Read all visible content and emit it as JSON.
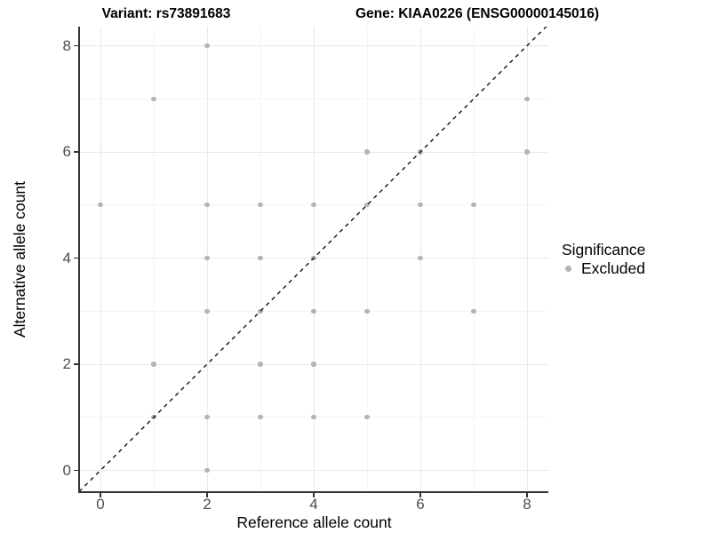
{
  "titles": {
    "variant": "Variant: rs73891683",
    "gene": "Gene: KIAA0226 (ENSG00000145016)"
  },
  "axes": {
    "x": {
      "label": "Reference allele count",
      "tick_labels": [
        "0",
        "2",
        "4",
        "6",
        "8"
      ]
    },
    "y": {
      "label": "Alternative allele count",
      "tick_labels": [
        "0",
        "2",
        "4",
        "6",
        "8"
      ]
    }
  },
  "legend": {
    "title": "Significance",
    "items": [
      {
        "label": "Excluded",
        "color": "#b4b4b4"
      }
    ]
  },
  "colors": {
    "point": "#b4b4b4",
    "grid_major": "#e8e8e8",
    "grid_minor": "#f4f4f4",
    "axis_line": "#343434",
    "tick": "#333333",
    "tick_text": "#4d4d4d",
    "diagonal": "#111111",
    "background": "#ffffff"
  },
  "chart_data": {
    "type": "scatter",
    "title_left": "Variant: rs73891683",
    "title_right": "Gene: KIAA0226 (ENSG00000145016)",
    "xlabel": "Reference allele count",
    "ylabel": "Alternative allele count",
    "xlim": [
      -0.4,
      8.4
    ],
    "ylim": [
      -0.4,
      8.4
    ],
    "x_ticks": [
      0,
      2,
      4,
      6,
      8
    ],
    "y_ticks": [
      0,
      2,
      4,
      6,
      8
    ],
    "x_minor_ticks": [
      1,
      3,
      5,
      7
    ],
    "y_minor_ticks": [
      1,
      3,
      5,
      7
    ],
    "grid": "on",
    "legend_position": "right",
    "series": [
      {
        "name": "Excluded",
        "color": "#b4b4b4",
        "points": [
          [
            0,
            5
          ],
          [
            1,
            1
          ],
          [
            1,
            2
          ],
          [
            1,
            7
          ],
          [
            2,
            0
          ],
          [
            2,
            1
          ],
          [
            2,
            3
          ],
          [
            2,
            4
          ],
          [
            2,
            5
          ],
          [
            2,
            8
          ],
          [
            3,
            1
          ],
          [
            3,
            2
          ],
          [
            3,
            3
          ],
          [
            3,
            4
          ],
          [
            3,
            5
          ],
          [
            4,
            1
          ],
          [
            4,
            2
          ],
          [
            4,
            3
          ],
          [
            4,
            4
          ],
          [
            4,
            5
          ],
          [
            5,
            1
          ],
          [
            5,
            3
          ],
          [
            5,
            5
          ],
          [
            5,
            6
          ],
          [
            6,
            4
          ],
          [
            6,
            5
          ],
          [
            6,
            6
          ],
          [
            7,
            3
          ],
          [
            7,
            5
          ],
          [
            8,
            6
          ],
          [
            8,
            7
          ]
        ]
      }
    ],
    "reference_line": {
      "kind": "identity y=x",
      "style": "dashed",
      "color": "#111111"
    }
  }
}
